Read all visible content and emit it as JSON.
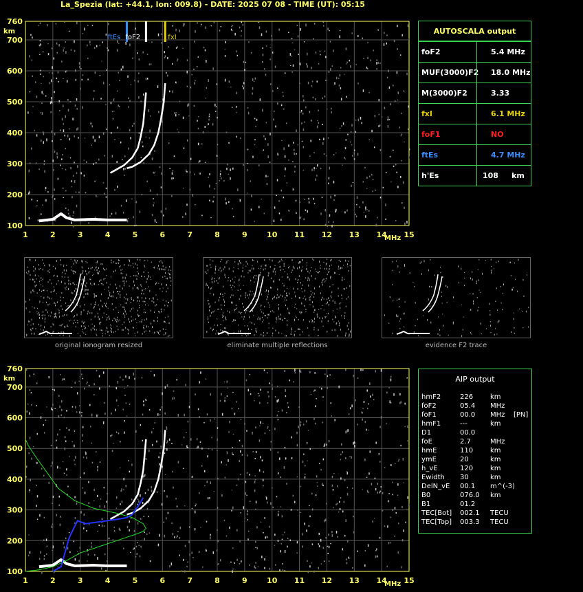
{
  "title": "La_Spezia (lat: +44.1, lon: 009.8) - DATE: 2025 07 08 - TIME (UT): 05:15",
  "axis": {
    "y_unit": "km",
    "x_unit": "MHz",
    "y_ticks": [
      "100",
      "200",
      "300",
      "400",
      "500",
      "600",
      "700",
      "760"
    ],
    "x_ticks": [
      "1",
      "2",
      "3",
      "4",
      "5",
      "6",
      "7",
      "8",
      "9",
      "10",
      "11",
      "12",
      "13",
      "14",
      "15"
    ]
  },
  "markers": {
    "ftEs": "ftEs",
    "foF2": "foF2",
    "fxI": "fxI"
  },
  "autoscala": {
    "title": "AUTOSCALA output",
    "rows": [
      {
        "label": "foF2",
        "value": "5.4 MHz",
        "color": "#ffffff"
      },
      {
        "label": "MUF(3000)F2",
        "value": "18.0 MHz",
        "color": "#ffffff"
      },
      {
        "label": "M(3000)F2",
        "value": "3.33",
        "color": "#ffffff"
      },
      {
        "label": "fxI",
        "value": "6.1 MHz",
        "color": "#e6d200"
      },
      {
        "label": "foF1",
        "value": "NO",
        "color": "#ff2020"
      },
      {
        "label": "ftEs",
        "value": "4.7 MHz",
        "color": "#3a8dff"
      },
      {
        "label": "h'Es",
        "value": "108",
        "unit": "km",
        "color": "#ffffff"
      }
    ]
  },
  "thumbnails": [
    {
      "caption": "original ionogram resized"
    },
    {
      "caption": "eliminate multiple reflections"
    },
    {
      "caption": "evidence F2 trace"
    }
  ],
  "aip": {
    "title": "AIP output",
    "rows": [
      {
        "name": "hmF2",
        "value": "226",
        "unit": "km",
        "extra": ""
      },
      {
        "name": "foF2",
        "value": "05.4",
        "unit": "MHz",
        "extra": ""
      },
      {
        "name": "foF1",
        "value": "00.0",
        "unit": "MHz",
        "extra": "[PN]"
      },
      {
        "name": "hmF1",
        "value": "---",
        "unit": "km",
        "extra": ""
      },
      {
        "name": "D1",
        "value": "00.0",
        "unit": "",
        "extra": ""
      },
      {
        "name": "foE",
        "value": "2.7",
        "unit": "MHz",
        "extra": ""
      },
      {
        "name": "hmE",
        "value": "110",
        "unit": "km",
        "extra": ""
      },
      {
        "name": "ymE",
        "value": "20",
        "unit": "km",
        "extra": ""
      },
      {
        "name": "h_vE",
        "value": "120",
        "unit": "km",
        "extra": ""
      },
      {
        "name": "Ewidth",
        "value": "30",
        "unit": "km",
        "extra": ""
      },
      {
        "name": "DelN_vE",
        "value": "00.1",
        "unit": "m^(-3)",
        "extra": ""
      },
      {
        "name": "B0",
        "value": "076.0",
        "unit": "km",
        "extra": ""
      },
      {
        "name": "B1",
        "value": "01.2",
        "unit": "",
        "extra": ""
      },
      {
        "name": "TEC[Bot]",
        "value": "002.1",
        "unit": "TECU",
        "extra": ""
      },
      {
        "name": "TEC[Top]",
        "value": "003.3",
        "unit": "TECU",
        "extra": ""
      }
    ]
  },
  "chart_data": [
    {
      "type": "scatter",
      "xlabel": "MHz",
      "ylabel": "km",
      "xlim": [
        1,
        15
      ],
      "ylim": [
        100,
        760
      ],
      "grid": true,
      "series": [
        {
          "name": "F2 O-trace",
          "x": [
            4.1,
            4.3,
            4.6,
            4.9,
            5.1,
            5.2,
            5.3,
            5.35,
            5.4
          ],
          "y": [
            270,
            280,
            295,
            320,
            350,
            385,
            430,
            480,
            530
          ]
        },
        {
          "name": "F2 X-trace",
          "x": [
            4.7,
            4.9,
            5.2,
            5.5,
            5.7,
            5.85,
            5.95,
            6.05,
            6.1
          ],
          "y": [
            285,
            290,
            305,
            330,
            360,
            400,
            445,
            500,
            560
          ]
        },
        {
          "name": "Es trace",
          "x": [
            1.5,
            2.0,
            2.3,
            2.5,
            2.8,
            3.5,
            4.0,
            4.7
          ],
          "y": [
            115,
            120,
            138,
            125,
            118,
            120,
            118,
            118
          ]
        }
      ]
    },
    {
      "type": "line",
      "xlabel": "MHz",
      "ylabel": "km",
      "xlim": [
        1,
        15
      ],
      "ylim": [
        100,
        760
      ],
      "grid": true,
      "series": [
        {
          "name": "profile",
          "x": [
            1.0,
            1.5,
            2.0,
            2.5,
            3.0,
            3.5,
            4.0,
            4.5,
            5.0,
            5.3,
            5.4,
            5.3,
            4.9,
            4.3,
            3.5,
            2.8,
            2.2,
            1.8,
            1.4,
            1.1,
            1.0
          ],
          "y": [
            100,
            105,
            115,
            135,
            160,
            175,
            190,
            205,
            220,
            230,
            240,
            255,
            275,
            290,
            305,
            330,
            370,
            420,
            470,
            510,
            530
          ]
        },
        {
          "name": "trace",
          "x": [
            2.0,
            2.3,
            2.6,
            2.9,
            3.2,
            3.6,
            4.0,
            4.4,
            4.7,
            4.9,
            5.1,
            5.3
          ],
          "y": [
            100,
            115,
            210,
            265,
            255,
            260,
            265,
            270,
            275,
            285,
            310,
            340
          ]
        }
      ]
    }
  ]
}
